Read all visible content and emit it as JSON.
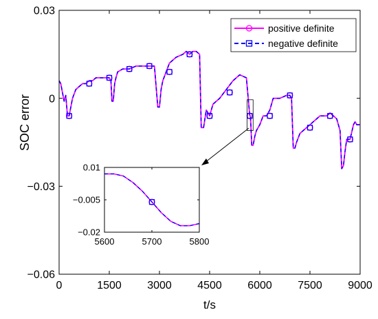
{
  "chart_data": {
    "type": "line",
    "title": "",
    "xlabel": "t/s",
    "ylabel": "SOC error",
    "xlim": [
      0,
      9000
    ],
    "ylim": [
      -0.06,
      0.03
    ],
    "xticks": [
      0,
      1500,
      3000,
      4500,
      6000,
      7500,
      9000
    ],
    "xtick_labels": [
      "0",
      "1500",
      "3000",
      "4500",
      "6000",
      "7500",
      "9000"
    ],
    "yticks": [
      -0.06,
      -0.03,
      0,
      0.03
    ],
    "ytick_labels": [
      "−0.06",
      "−0.03",
      "0",
      "0.03"
    ],
    "grid": false,
    "legend_position": "top-right",
    "series": [
      {
        "name": "positive definite",
        "color": "#ff00ff",
        "line_style": "solid",
        "marker": "circle",
        "x": [
          0,
          50,
          150,
          200,
          250,
          300,
          400,
          500,
          600,
          700,
          800,
          900,
          1000,
          1100,
          1200,
          1300,
          1400,
          1500,
          1550,
          1580,
          1620,
          1660,
          1700,
          1750,
          1900,
          2100,
          2300,
          2500,
          2700,
          2850,
          2950,
          3000,
          3050,
          3100,
          3200,
          3300,
          3500,
          3700,
          3800,
          3900,
          4000,
          4100,
          4200,
          4250,
          4320,
          4400,
          4500,
          4600,
          4800,
          5000,
          5200,
          5400,
          5600,
          5700,
          5720,
          5760,
          5800,
          5850,
          5900,
          6000,
          6100,
          6200,
          6300,
          6400,
          6600,
          6800,
          6900,
          6950,
          7000,
          7050,
          7100,
          7200,
          7400,
          7500,
          7600,
          7800,
          8000,
          8100,
          8200,
          8300,
          8400,
          8450,
          8500,
          8550,
          8600,
          8700,
          8800,
          8850,
          8900,
          9000
        ],
        "y": [
          0.006,
          0.005,
          -0.001,
          0.001,
          -0.006,
          -0.006,
          0.0,
          0.003,
          0.004,
          0.005,
          0.005,
          0.006,
          0.006,
          0.007,
          0.007,
          0.007,
          0.007,
          0.007,
          0.006,
          -0.001,
          -0.001,
          0.005,
          0.007,
          0.009,
          0.01,
          0.01,
          0.011,
          0.011,
          0.011,
          0.011,
          -0.003,
          -0.003,
          0.003,
          0.006,
          0.009,
          0.012,
          0.014,
          0.015,
          0.016,
          0.015,
          0.016,
          0.016,
          0.015,
          -0.01,
          -0.01,
          -0.004,
          -0.006,
          -0.002,
          0.0,
          0.003,
          0.006,
          0.008,
          0.007,
          -0.006,
          -0.006,
          -0.016,
          -0.016,
          -0.013,
          -0.011,
          -0.009,
          -0.006,
          -0.006,
          -0.004,
          0.0,
          0.0,
          0.001,
          0.001,
          0.0,
          -0.017,
          -0.017,
          -0.015,
          -0.012,
          -0.01,
          -0.009,
          -0.008,
          -0.006,
          -0.006,
          -0.005,
          -0.006,
          -0.007,
          -0.011,
          -0.024,
          -0.023,
          -0.018,
          -0.014,
          -0.014,
          -0.009,
          -0.008,
          -0.009,
          -0.009
        ],
        "marker_x": [
          300,
          900,
          1500,
          2100,
          2700,
          3300,
          3900,
          4500,
          5100,
          5700,
          6300,
          6900,
          7500,
          8100,
          8700
        ],
        "marker_y": [
          -0.006,
          0.005,
          0.007,
          0.01,
          0.011,
          0.009,
          0.015,
          -0.006,
          0.002,
          -0.006,
          -0.006,
          0.001,
          -0.01,
          -0.006,
          -0.014
        ]
      },
      {
        "name": "negative definite",
        "color": "#0000ff",
        "line_style": "dashed",
        "marker": "square"
      }
    ],
    "inset": {
      "xlim": [
        5600,
        5800
      ],
      "ylim": [
        -0.02,
        0.01
      ],
      "xticks": [
        5600,
        5700,
        5800
      ],
      "xtick_labels": [
        "5600",
        "5700",
        "5800"
      ],
      "yticks": [
        -0.02,
        -0.005,
        0.01
      ],
      "ytick_labels": [
        "−0.02",
        "−0.005",
        "0.01"
      ],
      "x": [
        5600,
        5620,
        5640,
        5660,
        5680,
        5700,
        5720,
        5740,
        5760,
        5780,
        5800
      ],
      "y": [
        0.007,
        0.007,
        0.006,
        0.003,
        -0.001,
        -0.006,
        -0.011,
        -0.015,
        -0.017,
        -0.017,
        -0.016
      ],
      "marker_x": [
        5700
      ],
      "marker_y": [
        -0.006
      ]
    },
    "zoom_box": {
      "x": [
        5620,
        5800
      ],
      "y": [
        -0.011,
        -0.0005
      ]
    }
  }
}
